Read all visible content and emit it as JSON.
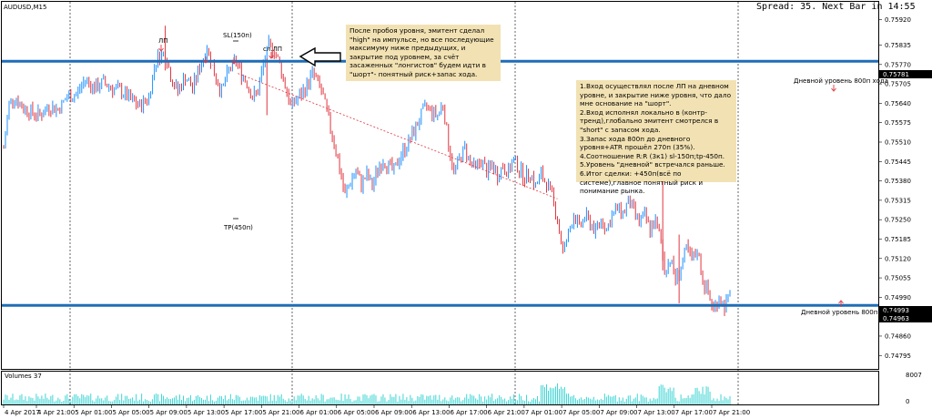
{
  "window": {
    "symbol_label": "AUDUSD,M15",
    "spread_text": "Spread: 35. Next Bar in 14:55",
    "volumes_label": "Volumes 37"
  },
  "colors": {
    "bull": "#1e90ff",
    "bear": "#e0353f",
    "level_line": "#1f6db6",
    "trend_line": "#e0353f",
    "volume": "#40d4d4",
    "note_bg": "#f2e2b3",
    "arrow": "#e0353f"
  },
  "annotations": {
    "lp_label": "ЛП",
    "sl_label": "SL(150п)",
    "cl_lp_label": "сл.ЛП",
    "tp_label": "TP(450п)",
    "level_top_label": "Дневной  уровень 800п хода",
    "level_bottom_label": "Дневной  уровень 800п хода"
  },
  "notes": {
    "top": "После пробоя уровня, эмитент сделал \"high\" на импульсе, но все последующие максимуму ниже предыдущих, и закрытие под уровнем, за счёт засаженных \"лонгистов\" будем идти в \"шорт\"- понятный риск+запас хода.",
    "right": [
      "1.Вход осуществлял после ЛП на дневном уровне, и закрытие ниже уровня, что дало мне основание на \"шорт\".",
      "2.Вход исполнял локально в (контр-тренд),глобально эмитент смотрелся в \"short\" с запасом хода.",
      "3.Запас хода 800п до дневного уровня+ATR прошёл 270п (35%).",
      "4.Соотношение R:R (3к1) sl-150п;tp-450п.",
      "5.Уровень \"дневной\" встречался раньше.",
      "6.Итог сделки: +450п(всё по системе),главное понятный риск и понимание рынка."
    ]
  },
  "price_axis": {
    "ticks": [
      "0.75920",
      "0.75835",
      "0.75770",
      "0.75705",
      "0.75640",
      "0.75575",
      "0.75510",
      "0.75445",
      "0.75380",
      "0.75315",
      "0.75250",
      "0.75185",
      "0.75120",
      "0.75055",
      "0.74990",
      "0.74925",
      "0.74860",
      "0.74795"
    ],
    "level_top": "0.75781",
    "level_bottom": "0.74963",
    "current": "0.74993"
  },
  "volume_axis": {
    "max_label": "8007",
    "zero_label": "0"
  },
  "time_axis": {
    "labels": [
      "4 Apr 2017",
      "4 Apr 21:00",
      "5 Apr 01:00",
      "5 Apr 05:00",
      "5 Apr 09:00",
      "5 Apr 13:00",
      "5 Apr 17:00",
      "5 Apr 21:00",
      "6 Apr 01:00",
      "6 Apr 05:00",
      "6 Apr 09:00",
      "6 Apr 13:00",
      "6 Apr 17:00",
      "6 Apr 21:00",
      "7 Apr 01:00",
      "7 Apr 05:00",
      "7 Apr 09:00",
      "7 Apr 13:00",
      "7 Apr 17:00",
      "7 Apr 21:00"
    ]
  },
  "chart_data": {
    "type": "candlestick",
    "symbol": "AUDUSD",
    "timeframe": "M15",
    "y_range": [
      0.7475,
      0.7598
    ],
    "levels": [
      0.75781,
      0.74963
    ],
    "current_price": 0.74993,
    "close_path": [
      [
        0,
        0.7549
      ],
      [
        6,
        0.7564
      ],
      [
        12,
        0.7566
      ],
      [
        20,
        0.7563
      ],
      [
        30,
        0.7561
      ],
      [
        40,
        0.756
      ],
      [
        50,
        0.7563
      ],
      [
        60,
        0.7562
      ],
      [
        70,
        0.7566
      ],
      [
        80,
        0.7567
      ],
      [
        90,
        0.7572
      ],
      [
        100,
        0.7569
      ],
      [
        110,
        0.7571
      ],
      [
        120,
        0.7569
      ],
      [
        130,
        0.7568
      ],
      [
        140,
        0.7565
      ],
      [
        150,
        0.7563
      ],
      [
        160,
        0.7566
      ],
      [
        167,
        0.7578
      ],
      [
        172,
        0.758
      ],
      [
        178,
        0.7581
      ],
      [
        185,
        0.7572
      ],
      [
        192,
        0.7568
      ],
      [
        200,
        0.7573
      ],
      [
        208,
        0.7569
      ],
      [
        216,
        0.7576
      ],
      [
        224,
        0.7583
      ],
      [
        232,
        0.7574
      ],
      [
        240,
        0.7568
      ],
      [
        248,
        0.7575
      ],
      [
        256,
        0.7578
      ],
      [
        262,
        0.7574
      ],
      [
        268,
        0.7571
      ],
      [
        274,
        0.7566
      ],
      [
        280,
        0.7568
      ],
      [
        286,
        0.7577
      ],
      [
        292,
        0.7583
      ],
      [
        298,
        0.7582
      ],
      [
        304,
        0.7577
      ],
      [
        310,
        0.757
      ],
      [
        316,
        0.7563
      ],
      [
        322,
        0.7565
      ],
      [
        328,
        0.7567
      ],
      [
        334,
        0.757
      ],
      [
        340,
        0.7574
      ],
      [
        346,
        0.7571
      ],
      [
        352,
        0.7566
      ],
      [
        358,
        0.7558
      ],
      [
        364,
        0.7551
      ],
      [
        370,
        0.7542
      ],
      [
        376,
        0.7533
      ],
      [
        382,
        0.7538
      ],
      [
        388,
        0.7541
      ],
      [
        394,
        0.7537
      ],
      [
        400,
        0.754
      ],
      [
        406,
        0.7536
      ],
      [
        412,
        0.7542
      ],
      [
        418,
        0.7545
      ],
      [
        424,
        0.7543
      ],
      [
        430,
        0.7541
      ],
      [
        436,
        0.7546
      ],
      [
        442,
        0.7549
      ],
      [
        448,
        0.7552
      ],
      [
        454,
        0.7556
      ],
      [
        460,
        0.756
      ],
      [
        466,
        0.7563
      ],
      [
        472,
        0.7561
      ],
      [
        478,
        0.756
      ],
      [
        484,
        0.7564
      ],
      [
        490,
        0.755
      ],
      [
        496,
        0.7541
      ],
      [
        502,
        0.7545
      ],
      [
        508,
        0.7549
      ],
      [
        514,
        0.7544
      ],
      [
        520,
        0.7542
      ],
      [
        526,
        0.7545
      ],
      [
        532,
        0.7541
      ],
      [
        538,
        0.7543
      ],
      [
        544,
        0.754
      ],
      [
        550,
        0.7543
      ],
      [
        556,
        0.7541
      ],
      [
        562,
        0.7545
      ],
      [
        568,
        0.7542
      ],
      [
        574,
        0.7539
      ],
      [
        580,
        0.7541
      ],
      [
        586,
        0.7536
      ],
      [
        592,
        0.754
      ],
      [
        598,
        0.7537
      ],
      [
        604,
        0.7533
      ],
      [
        610,
        0.7525
      ],
      [
        616,
        0.7514
      ],
      [
        622,
        0.752
      ],
      [
        628,
        0.7527
      ],
      [
        634,
        0.7522
      ],
      [
        640,
        0.7526
      ],
      [
        646,
        0.7524
      ],
      [
        652,
        0.7521
      ],
      [
        658,
        0.7525
      ],
      [
        664,
        0.7522
      ],
      [
        670,
        0.7526
      ],
      [
        676,
        0.7529
      ],
      [
        682,
        0.7527
      ],
      [
        688,
        0.7531
      ],
      [
        694,
        0.7528
      ],
      [
        700,
        0.7524
      ],
      [
        706,
        0.7526
      ],
      [
        712,
        0.7522
      ],
      [
        718,
        0.7524
      ],
      [
        724,
        0.7518
      ],
      [
        728,
        0.7508
      ],
      [
        734,
        0.7512
      ],
      [
        740,
        0.7505
      ],
      [
        746,
        0.7509
      ],
      [
        752,
        0.7515
      ],
      [
        758,
        0.7511
      ],
      [
        764,
        0.7515
      ],
      [
        770,
        0.7505
      ],
      [
        776,
        0.75
      ],
      [
        782,
        0.7495
      ],
      [
        788,
        0.7499
      ],
      [
        794,
        0.7496
      ],
      [
        800,
        0.7499
      ]
    ],
    "trade_line": {
      "from": [
        258,
        0.7574
      ],
      "to": [
        610,
        0.7532
      ]
    }
  }
}
